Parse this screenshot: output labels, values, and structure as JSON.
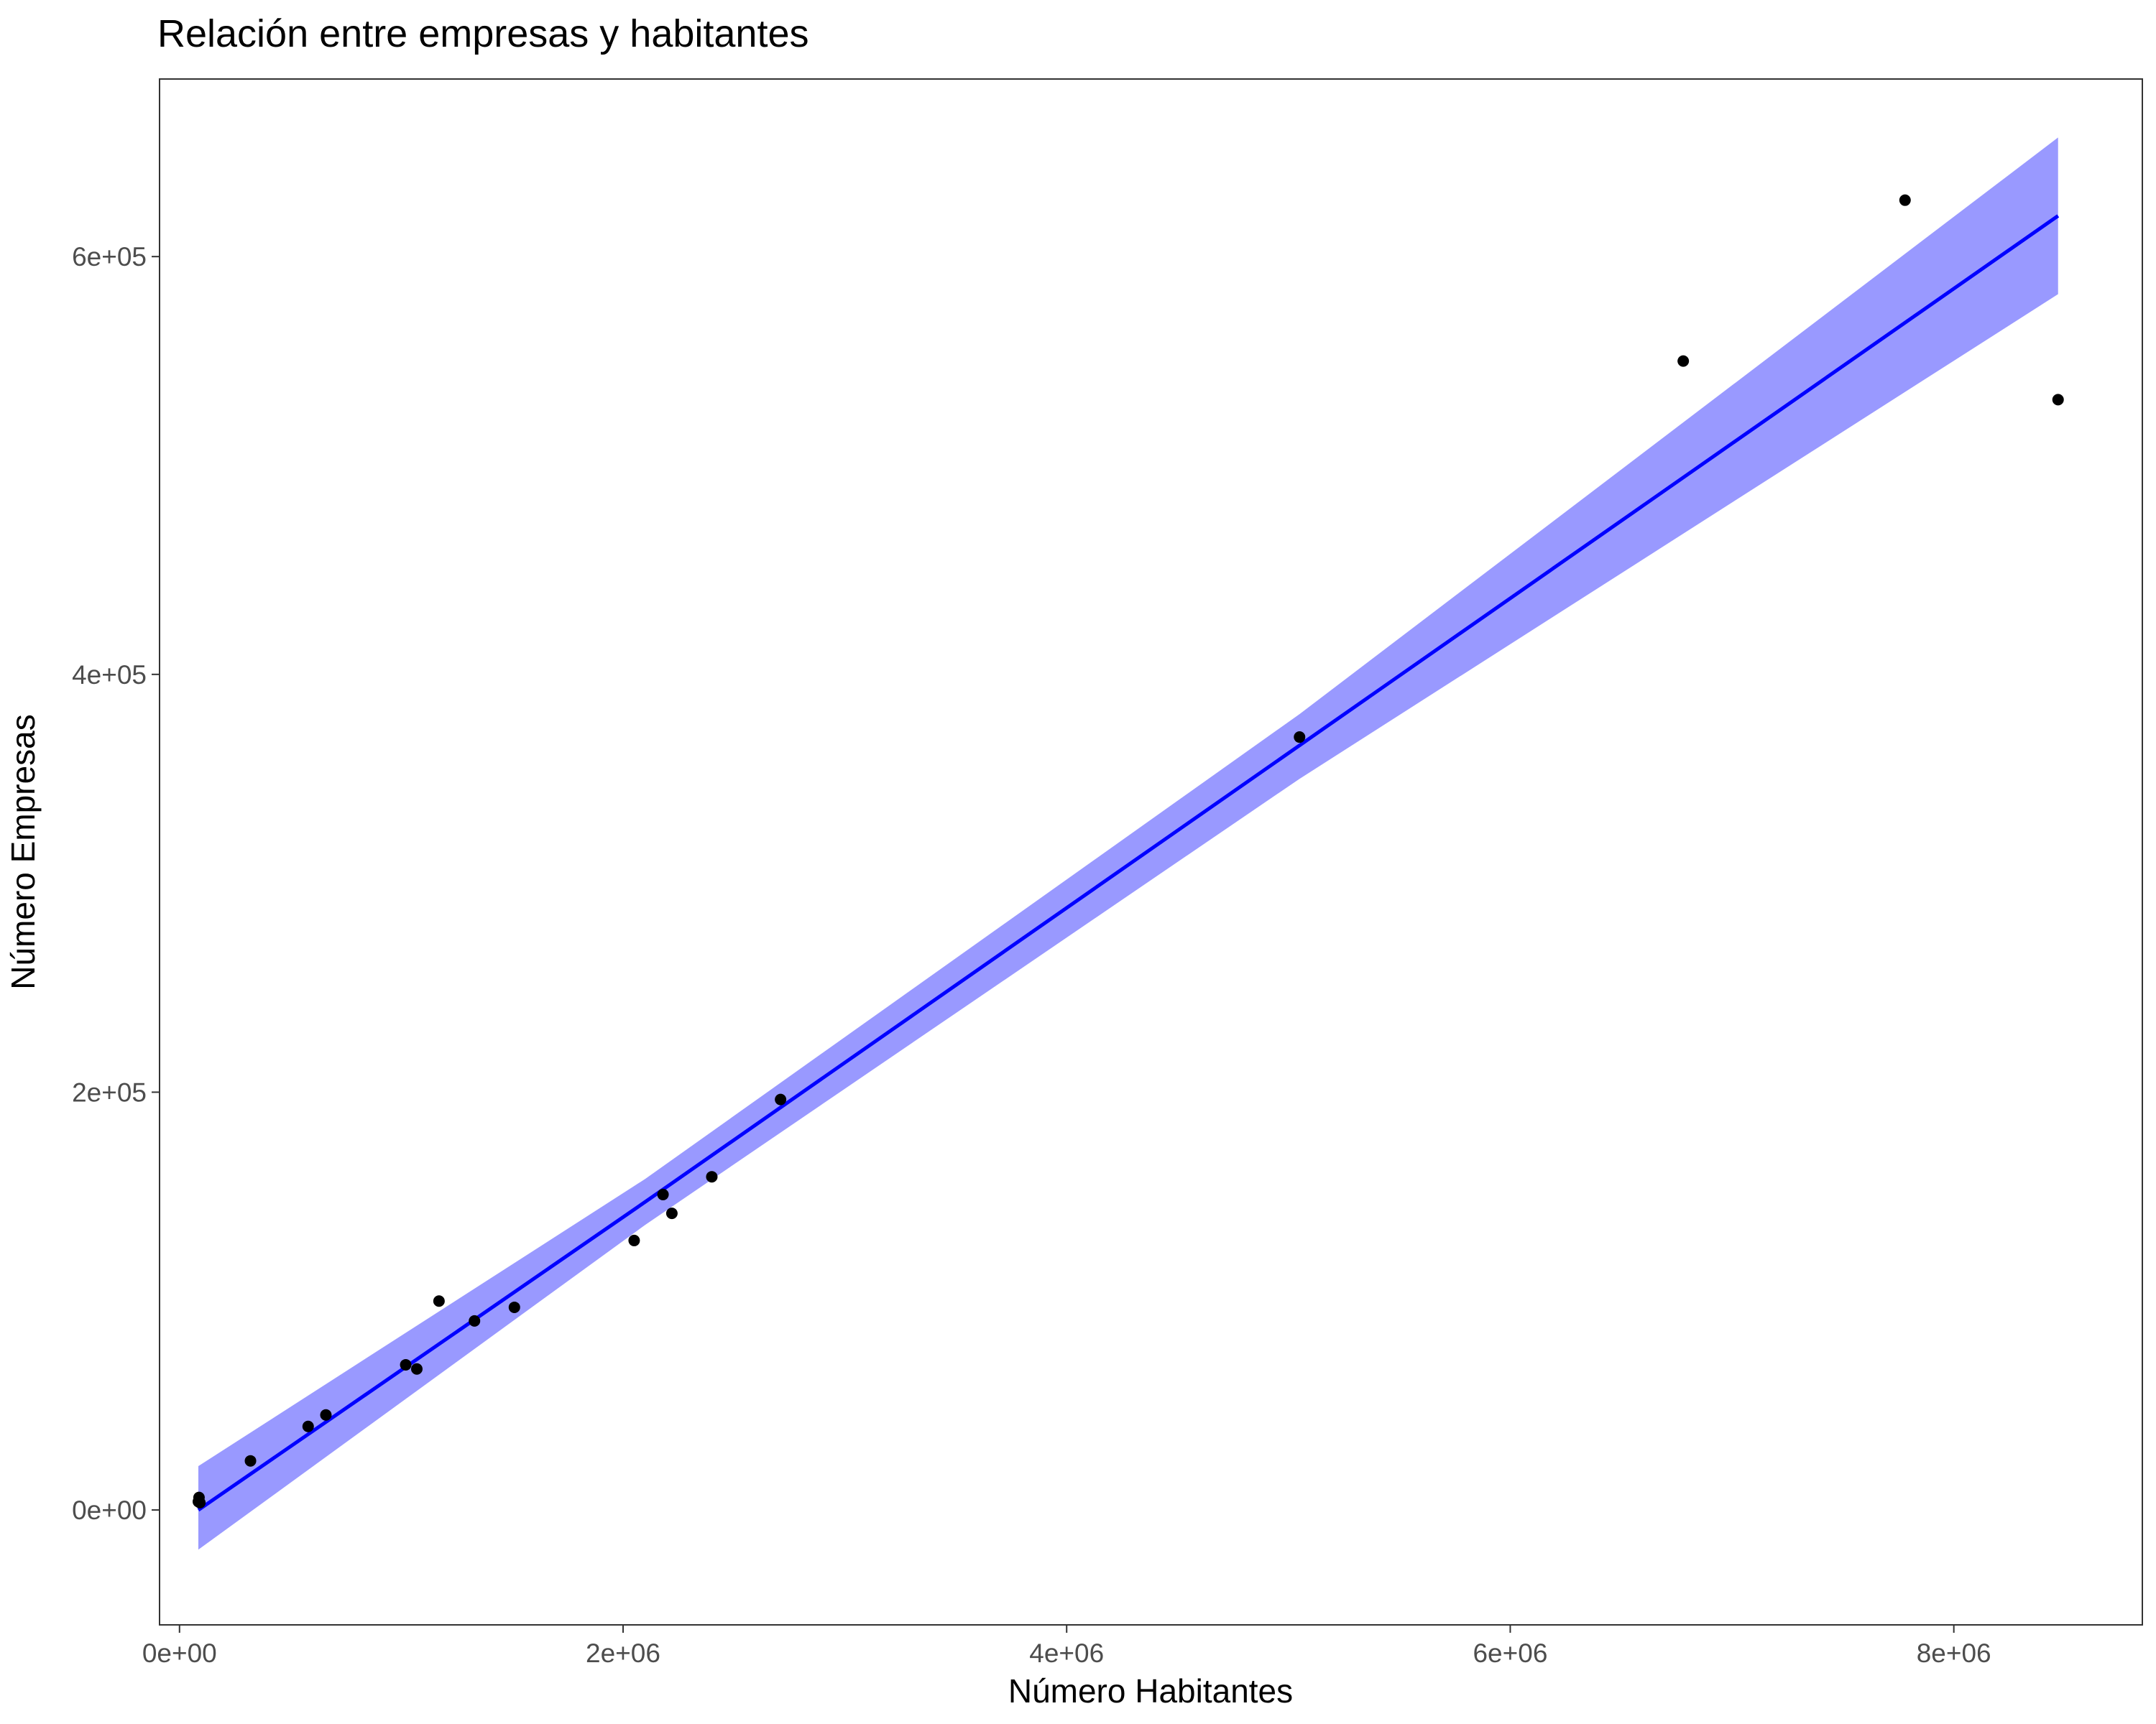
{
  "chart_data": {
    "type": "scatter",
    "title": "Relación entre empresas y habitantes",
    "xlabel": "Número Habitantes",
    "ylabel": "Número Empresas",
    "xlim": [
      -90000,
      8850000
    ],
    "ylim": [
      -55000,
      685000
    ],
    "x_ticks": [
      {
        "value": 0,
        "label": "0e+00"
      },
      {
        "value": 2000000,
        "label": "2e+06"
      },
      {
        "value": 4000000,
        "label": "4e+06"
      },
      {
        "value": 6000000,
        "label": "6e+06"
      },
      {
        "value": 8000000,
        "label": "8e+06"
      }
    ],
    "y_ticks": [
      {
        "value": 0,
        "label": "0e+00"
      },
      {
        "value": 200000,
        "label": "2e+05"
      },
      {
        "value": 400000,
        "label": "4e+05"
      },
      {
        "value": 600000,
        "label": "6e+05"
      }
    ],
    "grid": false,
    "legend": "none",
    "points": [
      {
        "x": 85000,
        "y": 4000
      },
      {
        "x": 88000,
        "y": 6000
      },
      {
        "x": 92000,
        "y": 3500
      },
      {
        "x": 320000,
        "y": 23500
      },
      {
        "x": 580000,
        "y": 40000
      },
      {
        "x": 660000,
        "y": 45500
      },
      {
        "x": 1020000,
        "y": 69500
      },
      {
        "x": 1070000,
        "y": 67500
      },
      {
        "x": 1170000,
        "y": 100000
      },
      {
        "x": 1330000,
        "y": 90500
      },
      {
        "x": 1510000,
        "y": 97000
      },
      {
        "x": 2050000,
        "y": 129000
      },
      {
        "x": 2180000,
        "y": 151000
      },
      {
        "x": 2220000,
        "y": 142000
      },
      {
        "x": 2400000,
        "y": 159500
      },
      {
        "x": 2710000,
        "y": 196500
      },
      {
        "x": 5050000,
        "y": 370000
      },
      {
        "x": 6780000,
        "y": 550000
      },
      {
        "x": 7780000,
        "y": 627000
      },
      {
        "x": 8470000,
        "y": 531500
      }
    ],
    "fit": {
      "method": "linear",
      "line": [
        {
          "x": 85000,
          "y": 0
        },
        {
          "x": 2100000,
          "y": 147500
        },
        {
          "x": 5050000,
          "y": 366000
        },
        {
          "x": 8470000,
          "y": 619500
        }
      ],
      "band_upper": [
        {
          "x": 85000,
          "y": 21000
        },
        {
          "x": 2100000,
          "y": 158500
        },
        {
          "x": 5050000,
          "y": 381000
        },
        {
          "x": 8470000,
          "y": 657000
        }
      ],
      "band_lower": [
        {
          "x": 85000,
          "y": -19000
        },
        {
          "x": 2100000,
          "y": 136500
        },
        {
          "x": 5050000,
          "y": 350000
        },
        {
          "x": 8470000,
          "y": 582000
        }
      ],
      "line_color": "#0000ff",
      "band_color": "#9999ff"
    },
    "point_color": "#000000"
  }
}
